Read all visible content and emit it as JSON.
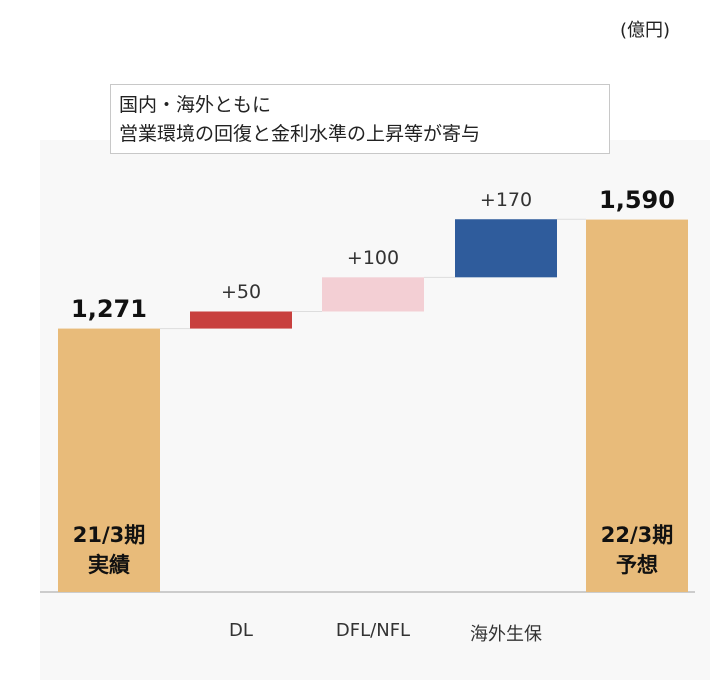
{
  "chart_data": {
    "type": "waterfall",
    "unit": "(億円)",
    "annotation": "国内・海外ともに\n営業環境の回復と金利水準の上昇等が寄与",
    "categories": [
      "21/3期\n実績",
      "DL",
      "DFL/NFL",
      "海外生保",
      "22/3期\n予想"
    ],
    "values": [
      1271,
      50,
      100,
      170,
      1590
    ],
    "value_labels": [
      "1,271",
      "+50",
      "+100",
      "+170",
      "1,590"
    ],
    "bar_types": [
      "total",
      "increase",
      "increase",
      "increase",
      "total"
    ],
    "colors": [
      "#e8bb7a",
      "#c8403e",
      "#f3cfd4",
      "#2f5c9c",
      "#e8bb7a"
    ],
    "ylim": [
      500,
      1700
    ]
  }
}
